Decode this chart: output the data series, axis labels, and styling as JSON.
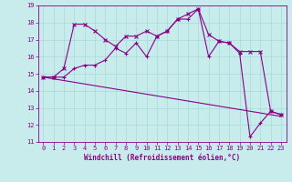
{
  "xlabel": "Windchill (Refroidissement éolien,°C)",
  "xlim": [
    -0.5,
    23.5
  ],
  "ylim": [
    11,
    19
  ],
  "yticks": [
    11,
    12,
    13,
    14,
    15,
    16,
    17,
    18,
    19
  ],
  "xticks": [
    0,
    1,
    2,
    3,
    4,
    5,
    6,
    7,
    8,
    9,
    10,
    11,
    12,
    13,
    14,
    15,
    16,
    17,
    18,
    19,
    20,
    21,
    22,
    23
  ],
  "bg_color": "#c8ecec",
  "grid_color": "#a8d8d8",
  "line_color": "#880088",
  "line1_x": [
    0,
    1,
    2,
    3,
    4,
    5,
    6,
    7,
    8,
    9,
    10,
    11,
    12,
    13,
    14,
    15,
    16,
    17,
    18,
    19,
    20,
    21,
    22,
    23
  ],
  "line1_y": [
    14.8,
    14.8,
    14.8,
    15.3,
    15.5,
    15.5,
    15.8,
    16.5,
    16.2,
    16.8,
    16.0,
    17.2,
    17.5,
    18.2,
    18.2,
    18.8,
    16.0,
    16.9,
    16.8,
    16.2,
    11.3,
    12.1,
    12.8,
    12.6
  ],
  "line2_x": [
    0,
    1,
    2,
    3,
    4,
    5,
    6,
    7,
    8,
    9,
    10,
    11,
    12,
    13,
    14,
    15,
    16,
    17,
    18,
    19,
    20,
    21,
    22,
    23
  ],
  "line2_y": [
    14.8,
    14.8,
    15.3,
    17.9,
    17.9,
    17.5,
    17.0,
    16.6,
    17.2,
    17.2,
    17.5,
    17.2,
    17.5,
    18.2,
    18.5,
    18.8,
    17.3,
    16.9,
    16.8,
    16.3,
    16.3,
    16.3,
    12.8,
    12.6
  ],
  "line3_x": [
    0,
    23
  ],
  "line3_y": [
    14.8,
    12.5
  ],
  "tick_fontsize": 5,
  "xlabel_fontsize": 5.5
}
